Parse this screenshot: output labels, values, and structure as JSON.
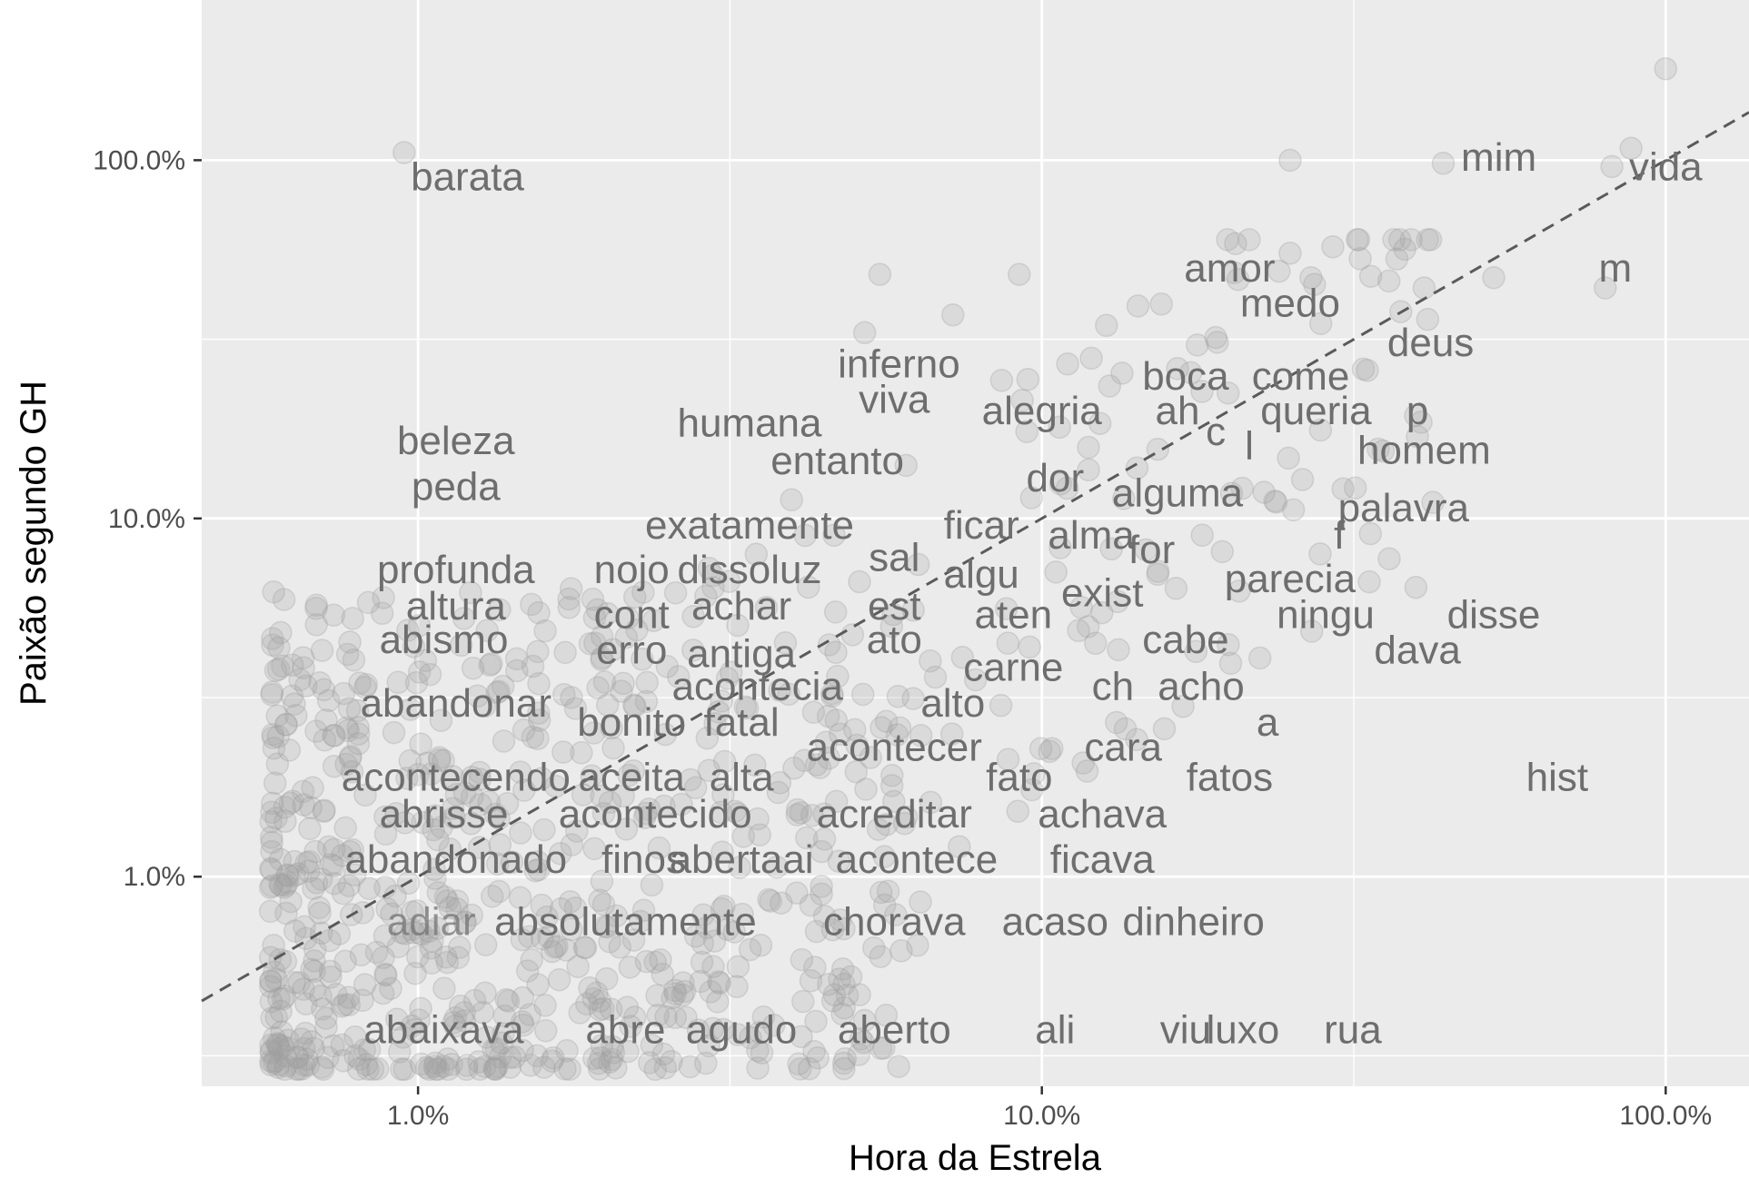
{
  "chart_data": {
    "type": "scatter",
    "title": "",
    "xlabel": "Hora da Estrela",
    "ylabel": "Paixão segundo GH",
    "x_scale": "log10",
    "y_scale": "log10",
    "xlim": [
      0.45,
      136
    ],
    "ylim": [
      0.26,
      280
    ],
    "x_ticks": [
      1,
      10,
      100
    ],
    "x_tick_labels": [
      "1.0%",
      "10.0%",
      "100.0%"
    ],
    "y_ticks": [
      1,
      10,
      100
    ],
    "y_tick_labels": [
      "1.0%",
      "10.0%",
      "100.0%"
    ],
    "grid": true,
    "reference_line": {
      "style": "dashed",
      "slope": 1,
      "intercept": 0
    },
    "colors": {
      "panel": "#ebebeb",
      "grid": "#ffffff",
      "points": "#9e9e9e",
      "labels": "#6e6e6e",
      "reference_line": "#5a5a5a",
      "faint_label": "#b8c8c8"
    },
    "labeled_words": [
      {
        "word": "barata",
        "x": 1.2,
        "y": 90
      },
      {
        "word": "mim",
        "x": 54,
        "y": 102
      },
      {
        "word": "vida",
        "x": 100,
        "y": 96
      },
      {
        "word": "amor",
        "x": 20,
        "y": 50
      },
      {
        "word": "medo",
        "x": 25,
        "y": 40
      },
      {
        "word": "m",
        "x": 83,
        "y": 50
      },
      {
        "word": "deus",
        "x": 42,
        "y": 31
      },
      {
        "word": "inferno",
        "x": 5.9,
        "y": 27
      },
      {
        "word": "boca",
        "x": 17,
        "y": 25
      },
      {
        "word": "come",
        "x": 26,
        "y": 25
      },
      {
        "word": "viva",
        "x": 5.8,
        "y": 21.5
      },
      {
        "word": "alegria",
        "x": 10,
        "y": 20
      },
      {
        "word": "ah",
        "x": 16.5,
        "y": 20
      },
      {
        "word": "queria",
        "x": 27.5,
        "y": 20
      },
      {
        "word": "p",
        "x": 40,
        "y": 20
      },
      {
        "word": "humana",
        "x": 3.4,
        "y": 18.5
      },
      {
        "word": "c",
        "x": 19,
        "y": 17.5
      },
      {
        "word": "l",
        "x": 21.5,
        "y": 16
      },
      {
        "word": "homem",
        "x": 41,
        "y": 15.5
      },
      {
        "word": "beleza",
        "x": 1.15,
        "y": 16.5
      },
      {
        "word": "entanto",
        "x": 4.7,
        "y": 14.5
      },
      {
        "word": "dor",
        "x": 10.5,
        "y": 13
      },
      {
        "word": "alguma",
        "x": 16.5,
        "y": 11.8
      },
      {
        "word": "peda",
        "x": 1.15,
        "y": 12.3
      },
      {
        "word": "palavra",
        "x": 38,
        "y": 10.7
      },
      {
        "word": "exatamente",
        "x": 3.4,
        "y": 9.6
      },
      {
        "word": "ficar",
        "x": 8,
        "y": 9.6
      },
      {
        "word": "alma",
        "x": 12,
        "y": 9
      },
      {
        "word": "f",
        "x": 30,
        "y": 9
      },
      {
        "word": "for",
        "x": 15,
        "y": 8.2
      },
      {
        "word": "sal",
        "x": 5.8,
        "y": 7.8
      },
      {
        "word": "profunda",
        "x": 1.15,
        "y": 7.2
      },
      {
        "word": "nojo",
        "x": 2.2,
        "y": 7.2
      },
      {
        "word": "dissoluz",
        "x": 3.4,
        "y": 7.2
      },
      {
        "word": "algu",
        "x": 8,
        "y": 7
      },
      {
        "word": "parecia",
        "x": 25,
        "y": 6.8
      },
      {
        "word": "exist",
        "x": 12.5,
        "y": 6.2
      },
      {
        "word": "altura",
        "x": 1.15,
        "y": 5.7
      },
      {
        "word": "achar",
        "x": 3.3,
        "y": 5.7
      },
      {
        "word": "est",
        "x": 5.8,
        "y": 5.7
      },
      {
        "word": "cont",
        "x": 2.2,
        "y": 5.4
      },
      {
        "word": "aten",
        "x": 9,
        "y": 5.4
      },
      {
        "word": "ningu",
        "x": 28.5,
        "y": 5.4
      },
      {
        "word": "disse",
        "x": 53,
        "y": 5.4
      },
      {
        "word": "abismo",
        "x": 1.1,
        "y": 4.6
      },
      {
        "word": "ato",
        "x": 5.8,
        "y": 4.6
      },
      {
        "word": "cabe",
        "x": 17,
        "y": 4.6
      },
      {
        "word": "erro",
        "x": 2.2,
        "y": 4.3
      },
      {
        "word": "antiga",
        "x": 3.3,
        "y": 4.2
      },
      {
        "word": "dava",
        "x": 40,
        "y": 4.3
      },
      {
        "word": "carne",
        "x": 9,
        "y": 3.85
      },
      {
        "word": "acontecia",
        "x": 3.5,
        "y": 3.4
      },
      {
        "word": "ch",
        "x": 13,
        "y": 3.4
      },
      {
        "word": "acho",
        "x": 18,
        "y": 3.4
      },
      {
        "word": "abandonar",
        "x": 1.15,
        "y": 3.05
      },
      {
        "word": "alto",
        "x": 7.2,
        "y": 3.05
      },
      {
        "word": "bonito",
        "x": 2.2,
        "y": 2.7
      },
      {
        "word": "fatal",
        "x": 3.3,
        "y": 2.7
      },
      {
        "word": "a",
        "x": 23,
        "y": 2.7
      },
      {
        "word": "acontecer",
        "x": 5.8,
        "y": 2.3
      },
      {
        "word": "cara",
        "x": 13.5,
        "y": 2.3
      },
      {
        "word": "acontecendo",
        "x": 1.15,
        "y": 1.9
      },
      {
        "word": "aceita",
        "x": 2.2,
        "y": 1.9
      },
      {
        "word": "alta",
        "x": 3.3,
        "y": 1.9
      },
      {
        "word": "fato",
        "x": 9.2,
        "y": 1.9
      },
      {
        "word": "fatos",
        "x": 20,
        "y": 1.9
      },
      {
        "word": "hist",
        "x": 67,
        "y": 1.9
      },
      {
        "word": "abrisse",
        "x": 1.1,
        "y": 1.5
      },
      {
        "word": "acontecido",
        "x": 2.4,
        "y": 1.5
      },
      {
        "word": "acreditar",
        "x": 5.8,
        "y": 1.5
      },
      {
        "word": "achava",
        "x": 12.5,
        "y": 1.5
      },
      {
        "word": "abandonado",
        "x": 1.15,
        "y": 1.12
      },
      {
        "word": "finos",
        "x": 2.3,
        "y": 1.12
      },
      {
        "word": "abertaai",
        "x": 3.3,
        "y": 1.12
      },
      {
        "word": "acontece",
        "x": 6.3,
        "y": 1.12
      },
      {
        "word": "ficava",
        "x": 12.5,
        "y": 1.12
      },
      {
        "word": "absolutamente",
        "x": 2.15,
        "y": 0.75
      },
      {
        "word": "chorava",
        "x": 5.8,
        "y": 0.75
      },
      {
        "word": "acaso",
        "x": 10.5,
        "y": 0.75
      },
      {
        "word": "dinheiro",
        "x": 17.5,
        "y": 0.75
      },
      {
        "word": "abaixava",
        "x": 1.1,
        "y": 0.375
      },
      {
        "word": "abre",
        "x": 2.15,
        "y": 0.375
      },
      {
        "word": "agudo",
        "x": 3.3,
        "y": 0.375
      },
      {
        "word": "aberto",
        "x": 5.8,
        "y": 0.375
      },
      {
        "word": "ali",
        "x": 10.5,
        "y": 0.375
      },
      {
        "word": "viu",
        "x": 17,
        "y": 0.375
      },
      {
        "word": "luxo",
        "x": 21,
        "y": 0.375
      },
      {
        "word": "rua",
        "x": 31.5,
        "y": 0.375
      }
    ],
    "faint_labels": [
      {
        "word": "adiar",
        "x": 1.05,
        "y": 0.75
      }
    ],
    "highlight_points": [
      [
        0.95,
        105
      ],
      [
        100,
        180
      ],
      [
        88,
        108
      ],
      [
        82,
        96
      ],
      [
        44,
        98
      ],
      [
        25,
        100
      ],
      [
        80,
        44
      ],
      [
        53,
        47
      ],
      [
        42,
        60
      ],
      [
        36,
        46
      ],
      [
        41,
        44
      ],
      [
        25,
        55
      ],
      [
        24,
        49
      ],
      [
        27,
        47
      ],
      [
        28,
        35
      ],
      [
        5.5,
        48
      ],
      [
        9.2,
        48
      ],
      [
        7.2,
        37
      ],
      [
        5.2,
        33
      ],
      [
        19,
        32
      ],
      [
        12,
        28
      ],
      [
        11,
        27
      ]
    ],
    "point_density": "~900 semi-transparent grey points, densest at low x and low y (0.3%–5%)"
  }
}
